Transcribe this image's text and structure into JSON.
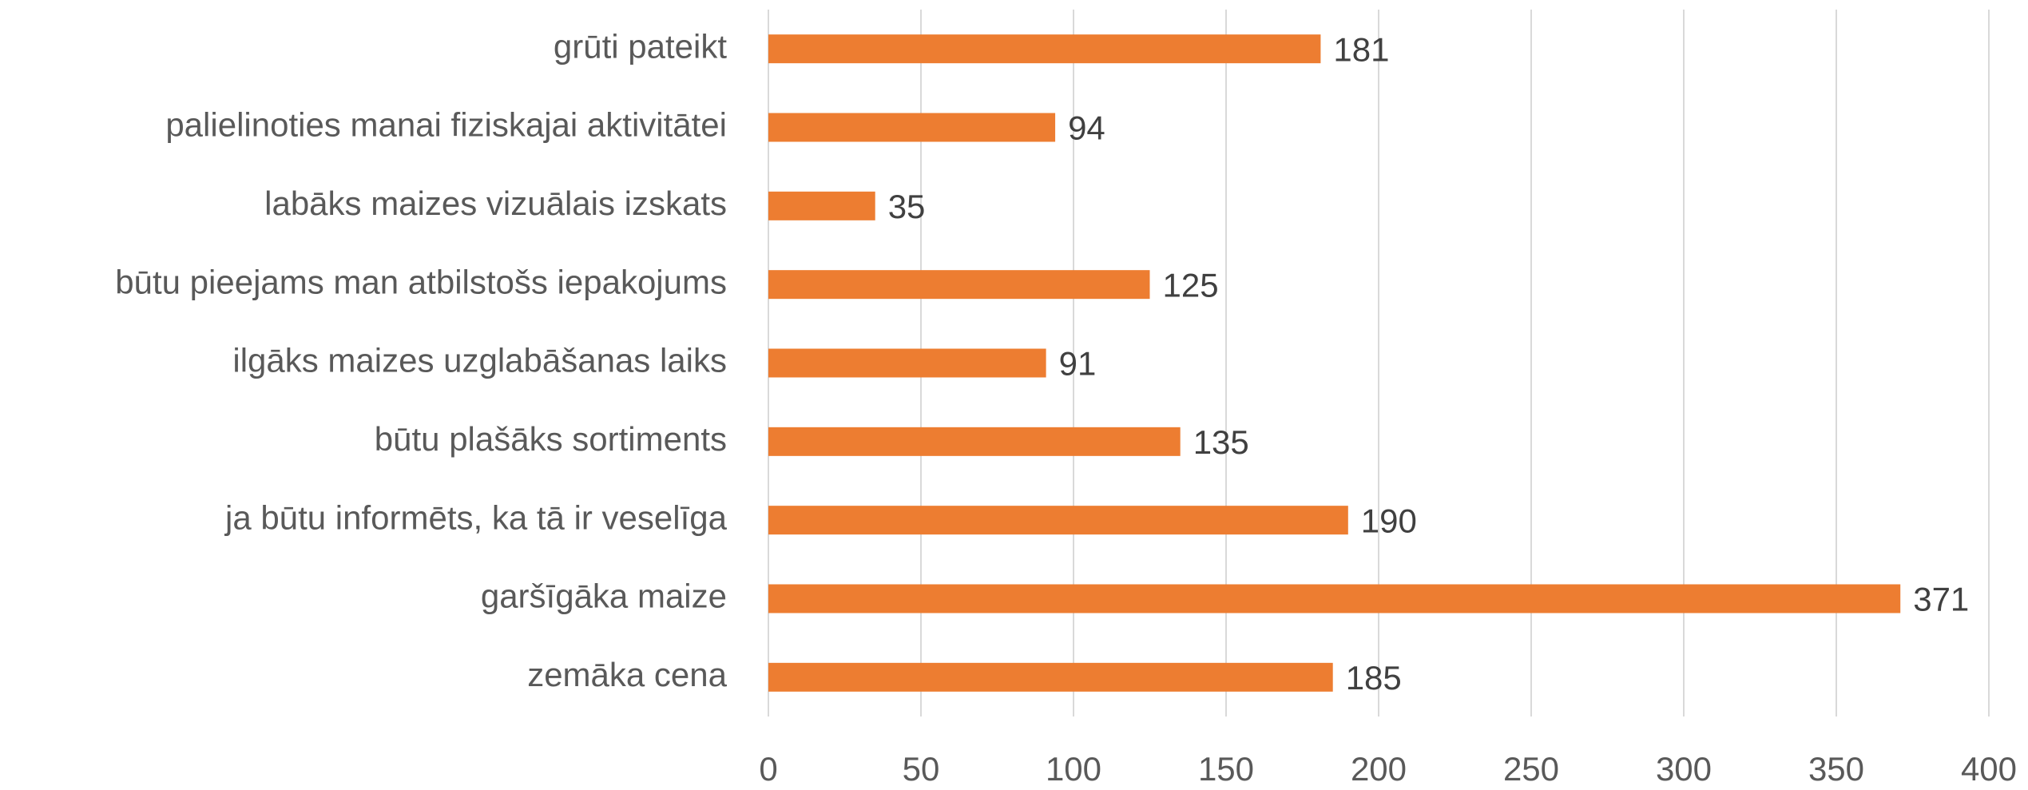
{
  "chart_data": {
    "type": "bar",
    "orientation": "horizontal",
    "categories": [
      "grūti pateikt",
      "palielinoties manai fiziskajai aktivitātei",
      "labāks maizes vizuālais izskats",
      "būtu pieejams man atbilstošs iepakojums",
      "ilgāks maizes uzglabāšanas laiks",
      "būtu plašāks sortiments",
      "ja būtu informēts, ka tā ir veselīga",
      "garšīgāka maize",
      "zemāka cena"
    ],
    "values": [
      181,
      94,
      35,
      125,
      91,
      135,
      190,
      371,
      185
    ],
    "color": "#ED7D31",
    "xlim": [
      0,
      400
    ],
    "xticks": [
      0,
      50,
      100,
      150,
      200,
      250,
      300,
      350,
      400
    ],
    "grid": true
  }
}
